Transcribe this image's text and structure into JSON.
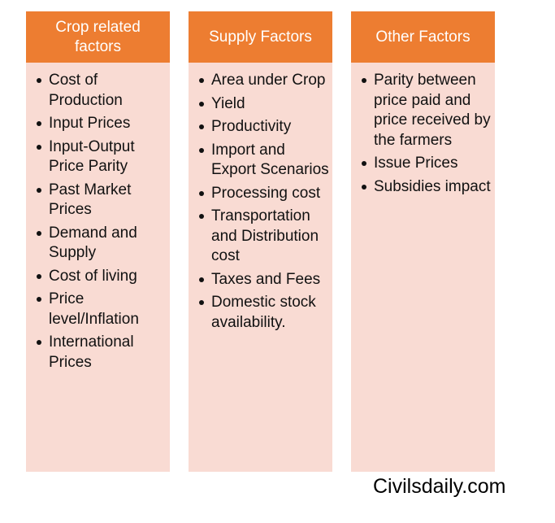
{
  "columns": [
    {
      "title": "Crop related factors",
      "items": [
        "Cost of Production",
        "Input Prices",
        "Input-Output Price Parity",
        "Past Market Prices",
        "Demand and Supply",
        "Cost of living",
        "Price level/Inflation",
        "International Prices"
      ]
    },
    {
      "title": "Supply Factors",
      "items": [
        "Area under Crop",
        "Yield",
        "Productivity",
        "Import and Export Scenarios",
        "Processing cost",
        "Transportation and Distribution cost",
        "Taxes and Fees",
        "Domestic stock availability."
      ]
    },
    {
      "title": "Other Factors",
      "items": [
        "Parity between price paid and price received by the farmers",
        "Issue Prices",
        "Subsidies impact"
      ]
    }
  ],
  "watermark": "Civilsdaily.com"
}
